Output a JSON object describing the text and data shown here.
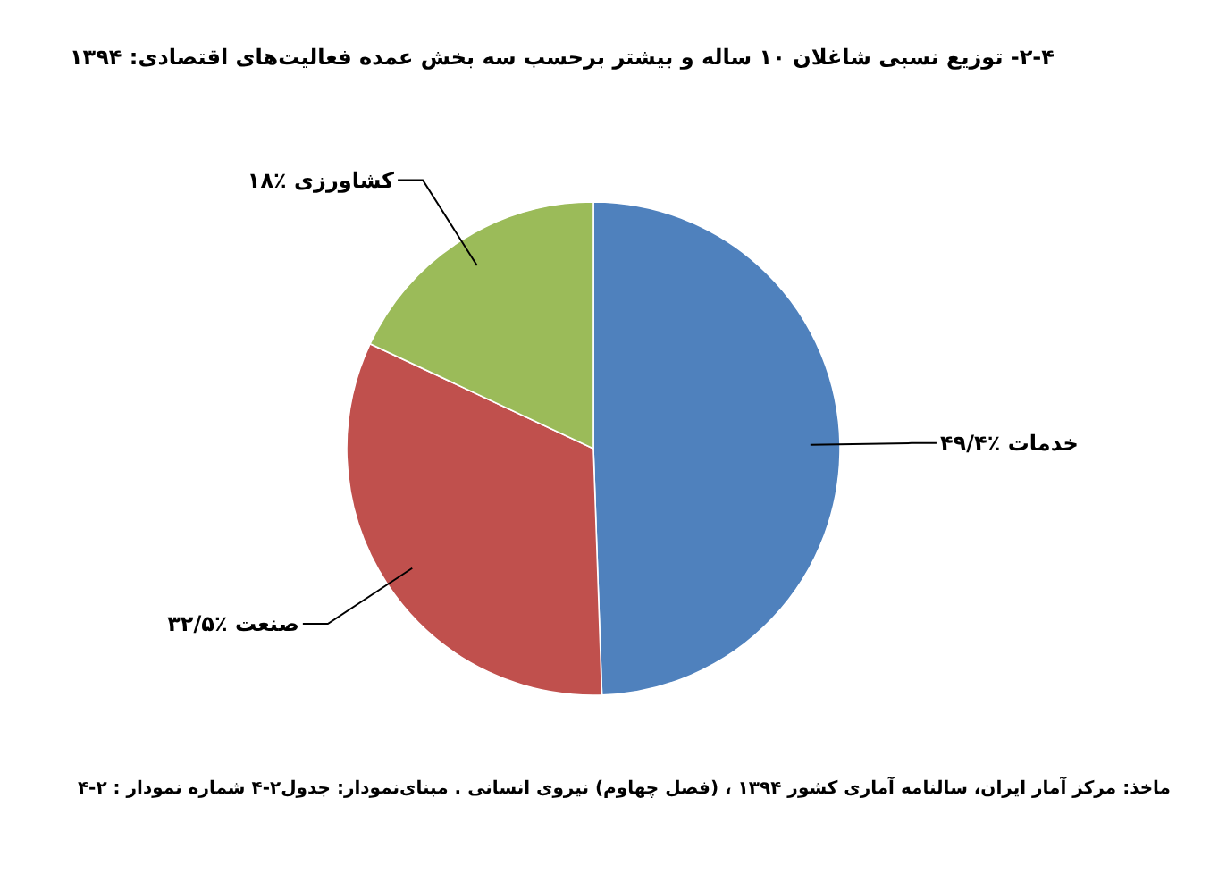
{
  "chart_data": {
    "type": "pie",
    "title": "۲-۴- توزیع نسبی شاغلان ۱۰ ساله و بیشتر برحسب سه بخش عمده فعالیت‌های اقتصادی: ۱۳۹۴",
    "categories": [
      "خدمات",
      "صنعت",
      "کشاورزی"
    ],
    "values": [
      49.4,
      32.5,
      18
    ],
    "colors": [
      "#4f81bd",
      "#c0504d",
      "#9bbb59"
    ],
    "value_labels": [
      "٪۴۹/۴",
      "٪۳۲/۵",
      "٪۱۸"
    ],
    "annotations": [
      "ماخذ: مرکز آمار ایران، سالنامه آماری کشور ۱۳۹۴ ، (فصل چهاوم) نیروی انسانی . مبنای‌نمودار: جدول۲-۴   شماره نمودار : ۲-۴"
    ]
  }
}
